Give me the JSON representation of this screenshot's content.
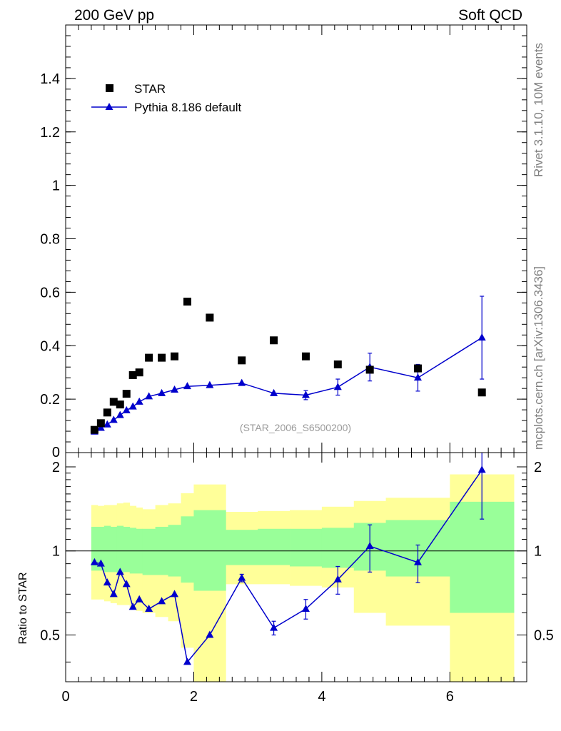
{
  "header": {
    "left_title": "200 GeV pp",
    "right_title": "Soft QCD"
  },
  "side_labels": {
    "top": "Rivet 3.1.10, 10M events",
    "bottom": "mcplots.cern.ch [arXiv:1306.3436]"
  },
  "watermark": "(STAR_2006_S6500200)",
  "colors": {
    "data": "#000000",
    "mc": "#0000cc",
    "band_inner": "#99ff99",
    "band_outer": "#ffff99"
  },
  "chart_data": [
    {
      "type": "scatter",
      "panel": "main",
      "xlim": [
        0,
        7.2
      ],
      "ylim": [
        0,
        1.6
      ],
      "yticks": [
        0,
        0.2,
        0.4,
        0.6,
        0.8,
        1,
        1.2,
        1.4
      ],
      "ytick_labels": [
        "0",
        "0.2",
        "0.4",
        "0.6",
        "0.8",
        "1",
        "1.2",
        "1.4"
      ],
      "legend": [
        "STAR",
        "Pythia 8.186 default"
      ],
      "series": [
        {
          "name": "STAR",
          "x": [
            0.45,
            0.55,
            0.65,
            0.75,
            0.85,
            0.95,
            1.05,
            1.15,
            1.3,
            1.5,
            1.7,
            1.9,
            2.25,
            2.75,
            3.25,
            3.75,
            4.25,
            4.75,
            5.5,
            6.5
          ],
          "y": [
            0.085,
            0.11,
            0.15,
            0.19,
            0.18,
            0.22,
            0.29,
            0.3,
            0.355,
            0.355,
            0.36,
            0.565,
            0.505,
            0.345,
            0.42,
            0.36,
            0.33,
            0.31,
            0.315,
            0.225
          ]
        },
        {
          "name": "Pythia 8.186 default",
          "x": [
            0.45,
            0.55,
            0.65,
            0.75,
            0.85,
            0.95,
            1.05,
            1.15,
            1.3,
            1.5,
            1.7,
            1.9,
            2.25,
            2.75,
            3.25,
            3.75,
            4.25,
            4.75,
            5.5,
            6.5
          ],
          "y": [
            0.078,
            0.092,
            0.105,
            0.122,
            0.14,
            0.158,
            0.172,
            0.19,
            0.21,
            0.222,
            0.235,
            0.248,
            0.252,
            0.26,
            0.222,
            0.215,
            0.245,
            0.32,
            0.28,
            0.43
          ],
          "err": [
            0.005,
            0.005,
            0.005,
            0.005,
            0.005,
            0.005,
            0.005,
            0.005,
            0.005,
            0.005,
            0.005,
            0.005,
            0.005,
            0.006,
            0.008,
            0.017,
            0.03,
            0.052,
            0.05,
            0.155
          ]
        }
      ]
    },
    {
      "type": "line",
      "panel": "ratio",
      "ylabel": "Ratio to STAR",
      "xlim": [
        0,
        7.2
      ],
      "ylim": [
        0.34,
        2.25
      ],
      "yticks": [
        0.5,
        1,
        2
      ],
      "ytick_labels": [
        "0.5",
        "1",
        "2"
      ],
      "xticks": [
        0,
        2,
        4,
        6
      ],
      "xtick_labels": [
        "0",
        "2",
        "4",
        "6"
      ],
      "bands": {
        "bins": [
          0.4,
          0.5,
          0.6,
          0.7,
          0.8,
          0.9,
          1.0,
          1.1,
          1.2,
          1.4,
          1.6,
          1.8,
          2.0,
          2.5,
          3.0,
          3.5,
          4.0,
          4.5,
          5.0,
          6.0,
          7.0
        ],
        "inner_lo": [
          0.85,
          0.85,
          0.84,
          0.84,
          0.83,
          0.84,
          0.83,
          0.83,
          0.82,
          0.82,
          0.81,
          0.77,
          0.72,
          0.89,
          0.89,
          0.88,
          0.87,
          0.85,
          0.81,
          0.6
        ],
        "inner_hi": [
          1.22,
          1.22,
          1.23,
          1.22,
          1.23,
          1.22,
          1.21,
          1.2,
          1.2,
          1.22,
          1.24,
          1.33,
          1.4,
          1.19,
          1.2,
          1.2,
          1.21,
          1.26,
          1.29,
          1.5
        ],
        "outer_lo": [
          0.67,
          0.67,
          0.66,
          0.65,
          0.64,
          0.64,
          0.62,
          0.61,
          0.6,
          0.58,
          0.56,
          0.45,
          0.34,
          0.76,
          0.76,
          0.75,
          0.74,
          0.6,
          0.54,
          0.34
        ],
        "outer_hi": [
          1.46,
          1.45,
          1.46,
          1.46,
          1.48,
          1.49,
          1.45,
          1.43,
          1.41,
          1.46,
          1.48,
          1.61,
          1.73,
          1.38,
          1.39,
          1.4,
          1.44,
          1.51,
          1.55,
          1.88
        ]
      },
      "series": [
        {
          "name": "Pythia 8.186 default / STAR",
          "x": [
            0.45,
            0.55,
            0.65,
            0.75,
            0.85,
            0.95,
            1.05,
            1.15,
            1.3,
            1.5,
            1.7,
            1.9,
            2.25,
            2.75,
            3.25,
            3.75,
            4.25,
            4.75,
            5.5,
            6.5
          ],
          "y": [
            0.91,
            0.9,
            0.77,
            0.7,
            0.84,
            0.76,
            0.63,
            0.67,
            0.62,
            0.66,
            0.7,
            0.4,
            0.5,
            0.8,
            0.53,
            0.62,
            0.79,
            1.04,
            0.91,
            1.95
          ],
          "err": [
            0.01,
            0.01,
            0.01,
            0.01,
            0.01,
            0.01,
            0.01,
            0.01,
            0.01,
            0.01,
            0.01,
            0.01,
            0.01,
            0.025,
            0.03,
            0.05,
            0.09,
            0.2,
            0.14,
            0.65
          ]
        }
      ]
    }
  ]
}
